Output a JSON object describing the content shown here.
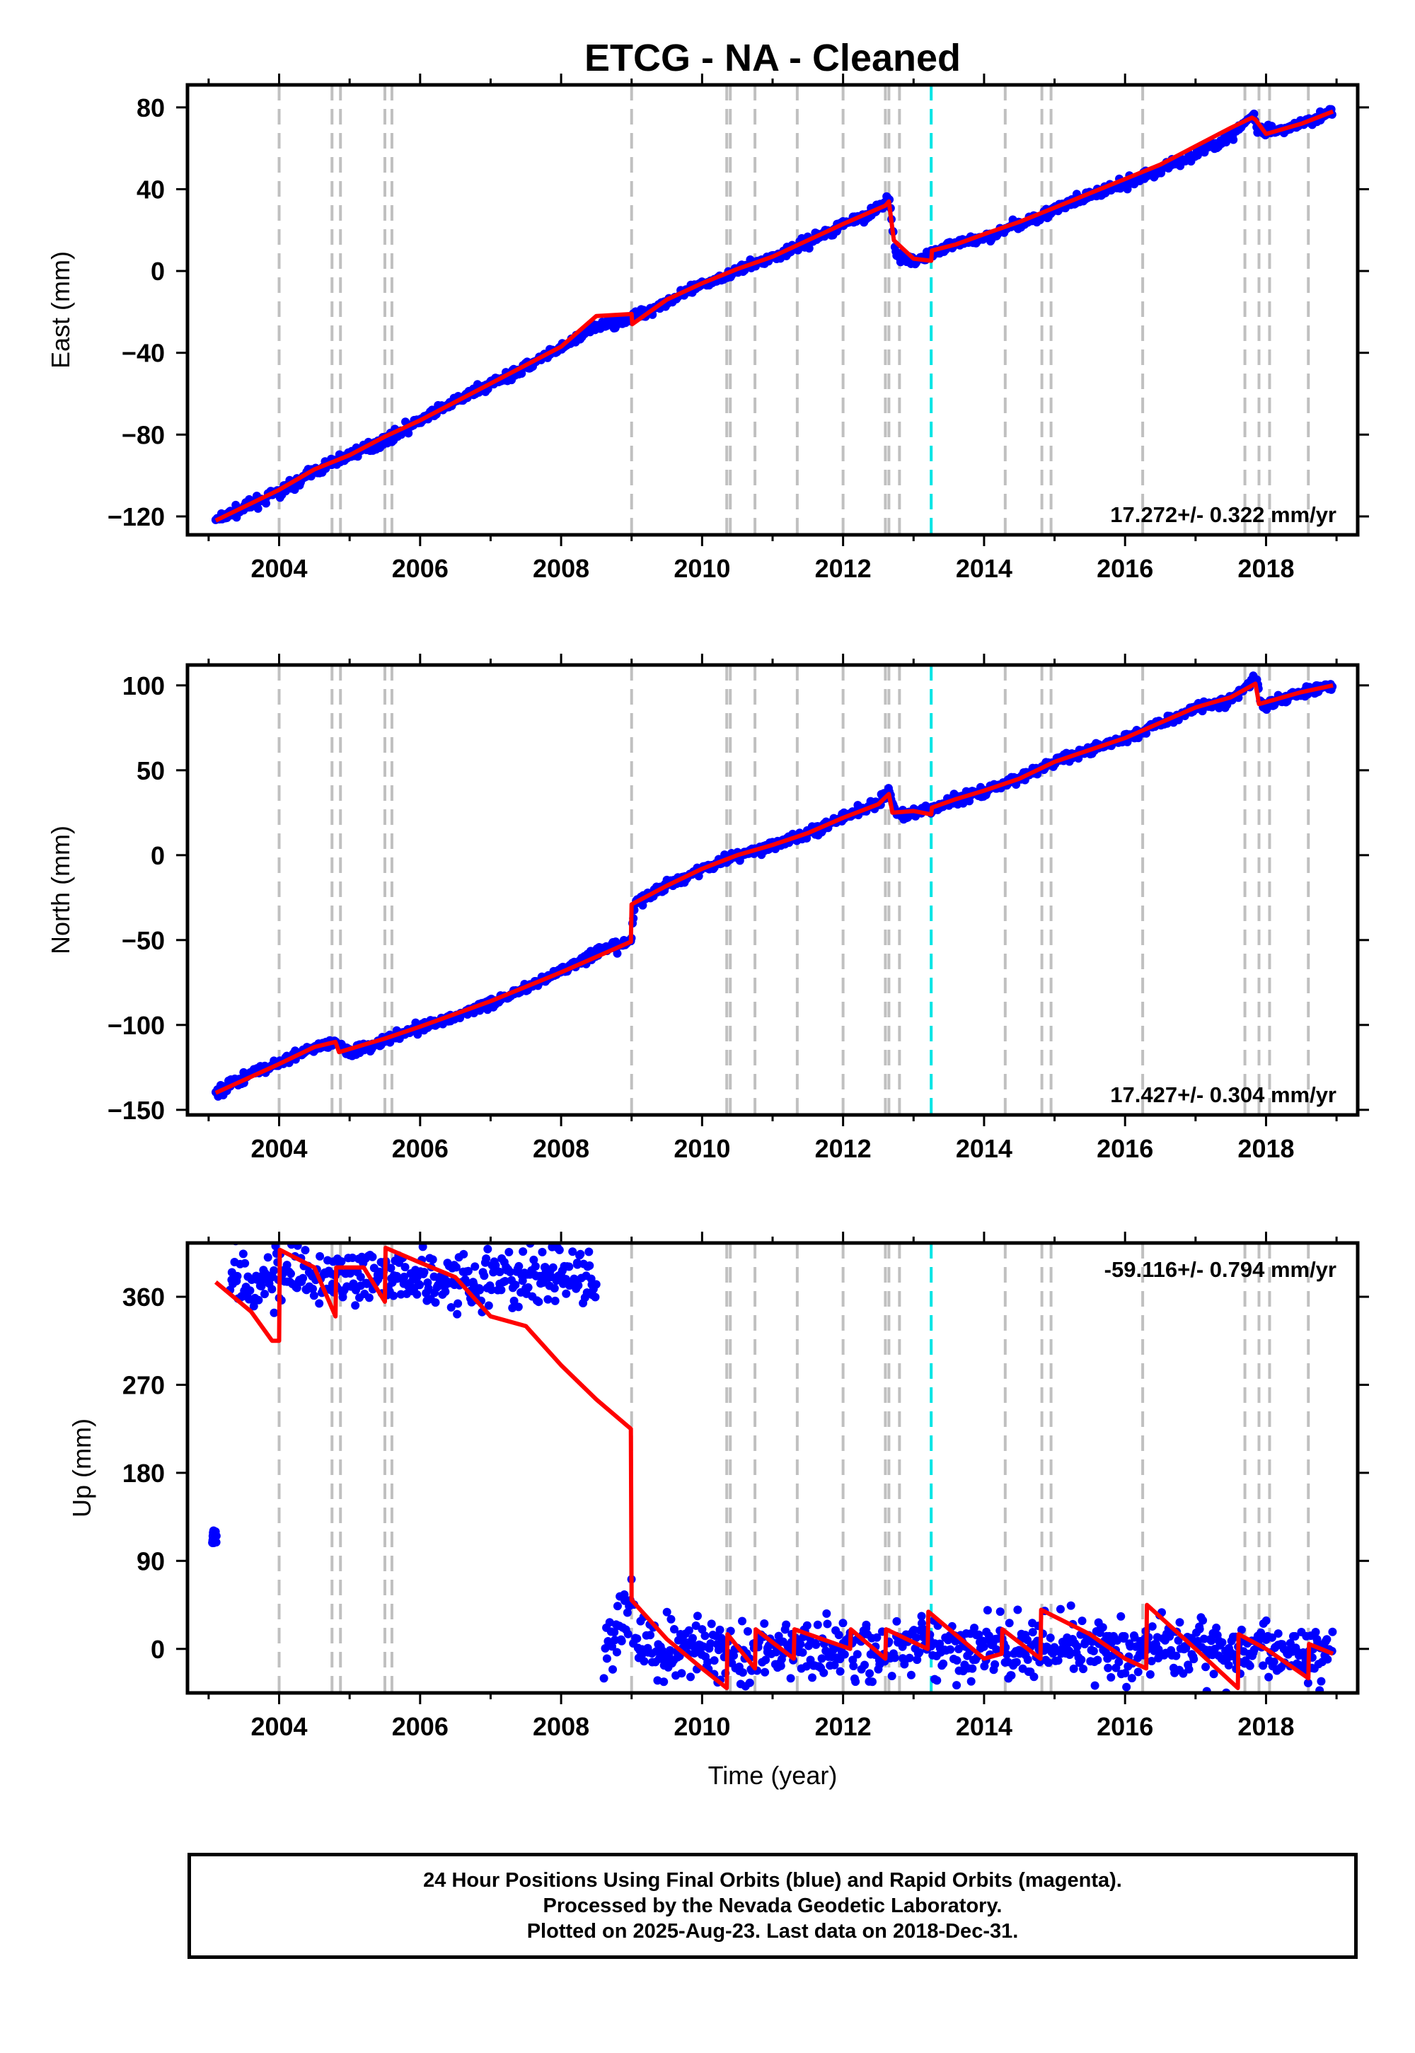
{
  "title": "ETCG  - NA - Cleaned",
  "footer": {
    "line1": "24 Hour Positions Using Final Orbits (blue) and Rapid Orbits (magenta).",
    "line2": "Processed by the Nevada Geodetic Laboratory.",
    "line3": "Plotted on 2025-Aug-23. Last data on 2018-Dec-31."
  },
  "colors": {
    "data": "#0000ff",
    "model": "#ff0000",
    "event_line": "#c0c0c0",
    "equipment_line": "#00e5e5"
  },
  "chart_data": [
    {
      "type": "scatter",
      "id": "east",
      "ylabel": "East (mm)",
      "xlabel": "",
      "xlim": [
        2002.7,
        2019.3
      ],
      "ylim": [
        -129,
        91
      ],
      "xticks": [
        2004,
        2006,
        2008,
        2010,
        2012,
        2014,
        2016,
        2018
      ],
      "yticks": [
        -120,
        -80,
        -40,
        0,
        40,
        80
      ],
      "rate_label": "17.272+/- 0.322 mm/yr",
      "rate_position": "bottom-right",
      "series": [
        {
          "kind": "points",
          "color": "#0000ff",
          "x": [
            2003.1,
            2003.5,
            2004.0,
            2004.5,
            2005.0,
            2005.5,
            2006.0,
            2006.5,
            2007.0,
            2007.5,
            2008.0,
            2008.5,
            2009.0,
            2009.5,
            2010.0,
            2010.5,
            2011.0,
            2011.5,
            2012.0,
            2012.5,
            2012.65,
            2012.75,
            2013.0,
            2013.6,
            2014.0,
            2014.5,
            2015.0,
            2015.5,
            2016.0,
            2016.5,
            2017.0,
            2017.5,
            2017.8,
            2017.9,
            2018.2,
            2018.6,
            2018.95
          ],
          "y": [
            -122,
            -116,
            -108,
            -98,
            -90,
            -83,
            -73,
            -64,
            -55,
            -47,
            -38,
            -27,
            -23,
            -15,
            -7,
            0,
            7,
            14,
            23,
            30,
            36,
            8,
            4,
            14,
            16,
            23,
            30,
            37,
            42,
            50,
            57,
            66,
            76,
            68,
            68,
            73,
            79
          ]
        },
        {
          "kind": "line",
          "color": "#ff0000",
          "x": [
            2003.1,
            2004.0,
            2004.5,
            2005.0,
            2005.5,
            2006.0,
            2007.0,
            2008.0,
            2008.5,
            2009.0,
            2009.01,
            2009.5,
            2010.0,
            2010.5,
            2011.0,
            2011.5,
            2012.0,
            2012.4,
            2012.6,
            2012.65,
            2012.72,
            2013.0,
            2013.25,
            2013.26,
            2013.6,
            2014.0,
            2014.5,
            2015.0,
            2015.5,
            2016.0,
            2016.5,
            2017.0,
            2017.5,
            2017.8,
            2017.85,
            2018.0,
            2018.5,
            2018.95
          ],
          "y": [
            -122,
            -107,
            -97,
            -90,
            -81,
            -73,
            -55,
            -37,
            -22,
            -21,
            -26,
            -14,
            -6,
            1,
            7,
            15,
            23,
            29,
            32,
            34,
            15,
            6,
            5,
            10,
            13,
            18,
            24,
            31,
            38,
            45,
            52,
            61,
            70,
            75,
            74,
            67,
            72,
            78
          ]
        }
      ]
    },
    {
      "type": "scatter",
      "id": "north",
      "ylabel": "North (mm)",
      "xlabel": "",
      "xlim": [
        2002.7,
        2019.3
      ],
      "ylim": [
        -153,
        112
      ],
      "xticks": [
        2004,
        2006,
        2008,
        2010,
        2012,
        2014,
        2016,
        2018
      ],
      "yticks": [
        -150,
        -100,
        -50,
        0,
        50,
        100
      ],
      "rate_label": "17.427+/- 0.304 mm/yr",
      "rate_position": "bottom-right",
      "series": [
        {
          "kind": "points",
          "color": "#0000ff",
          "x": [
            2003.1,
            2003.5,
            2004.0,
            2004.5,
            2004.8,
            2005.0,
            2005.5,
            2006.0,
            2006.5,
            2007.0,
            2007.5,
            2008.0,
            2008.5,
            2008.99,
            2009.05,
            2009.5,
            2010.0,
            2010.5,
            2011.0,
            2011.5,
            2012.0,
            2012.5,
            2012.65,
            2012.75,
            2013.0,
            2013.5,
            2014.0,
            2014.5,
            2015.0,
            2015.5,
            2016.0,
            2016.5,
            2017.0,
            2017.5,
            2017.85,
            2017.95,
            2018.5,
            2018.95
          ],
          "y": [
            -140,
            -131,
            -122,
            -113,
            -110,
            -116,
            -109,
            -101,
            -95,
            -87,
            -78,
            -68,
            -58,
            -51,
            -28,
            -18,
            -8,
            0,
            6,
            13,
            22,
            30,
            38,
            25,
            24,
            31,
            38,
            45,
            55,
            62,
            69,
            77,
            87,
            91,
            104,
            88,
            96,
            100
          ]
        },
        {
          "kind": "line",
          "color": "#ff0000",
          "x": [
            2003.1,
            2004.0,
            2004.5,
            2004.8,
            2004.85,
            2005.5,
            2006.0,
            2007.0,
            2008.0,
            2008.99,
            2009.0,
            2009.5,
            2010.0,
            2010.5,
            2011.0,
            2011.5,
            2012.0,
            2012.5,
            2012.65,
            2012.7,
            2013.0,
            2013.25,
            2013.26,
            2013.6,
            2014.0,
            2014.5,
            2015.0,
            2015.5,
            2016.0,
            2016.5,
            2017.0,
            2017.5,
            2017.85,
            2017.9,
            2018.5,
            2018.95
          ],
          "y": [
            -140,
            -123,
            -113,
            -110,
            -116,
            -108,
            -101,
            -86,
            -69,
            -51,
            -29,
            -18,
            -8,
            0,
            6,
            13,
            22,
            30,
            36,
            25,
            26,
            24,
            28,
            33,
            38,
            45,
            55,
            62,
            69,
            78,
            87,
            93,
            101,
            89,
            96,
            100
          ]
        }
      ]
    },
    {
      "type": "scatter",
      "id": "up",
      "ylabel": "Up (mm)",
      "xlabel": "Time (year)",
      "xlim": [
        2002.7,
        2019.3
      ],
      "ylim": [
        -45,
        415
      ],
      "xticks": [
        2004,
        2006,
        2008,
        2010,
        2012,
        2014,
        2016,
        2018
      ],
      "yticks": [
        0,
        90,
        180,
        270,
        360
      ],
      "rate_label": "-59.116+/- 0.794 mm/yr",
      "rate_position": "top-right",
      "series": [
        {
          "kind": "points",
          "color": "#0000ff",
          "x": [
            2003.05,
            2003.1,
            2003.3,
            2003.6,
            2004.0,
            2004.5,
            2005.0,
            2005.5,
            2006.0,
            2006.5,
            2007.0,
            2007.5,
            2008.0,
            2008.5,
            2008.6,
            2009.0,
            2009.05,
            2009.5,
            2010.0,
            2010.5,
            2011.0,
            2011.5,
            2012.0,
            2012.5,
            2013.0,
            2013.5,
            2014.0,
            2014.5,
            2015.0,
            2015.5,
            2016.0,
            2016.5,
            2017.0,
            2017.5,
            2018.0,
            2018.5,
            2018.95
          ],
          "y": [
            120,
            112,
            380,
            378,
            382,
            376,
            381,
            379,
            383,
            378,
            380,
            377,
            382,
            379,
            -5,
            45,
            5,
            -2,
            0,
            -5,
            2,
            -3,
            0,
            -6,
            5,
            0,
            2,
            -2,
            3,
            0,
            -2,
            0,
            3,
            -5,
            0,
            -3,
            5
          ]
        },
        {
          "kind": "line",
          "color": "#ff0000",
          "x": [
            2003.1,
            2003.6,
            2003.9,
            2004.0,
            2004.01,
            2004.5,
            2004.8,
            2004.81,
            2005.2,
            2005.5,
            2005.51,
            2006.0,
            2006.5,
            2007.0,
            2007.5,
            2008.0,
            2008.5,
            2008.99,
            2009.0,
            2009.5,
            2010.0,
            2010.35,
            2010.36,
            2010.75,
            2010.76,
            2011.3,
            2011.31,
            2012.1,
            2012.11,
            2012.6,
            2012.61,
            2013.2,
            2013.21,
            2014.0,
            2014.25,
            2014.26,
            2014.8,
            2014.81,
            2015.5,
            2016.0,
            2016.3,
            2016.31,
            2017.0,
            2017.6,
            2017.61,
            2018.0,
            2018.6,
            2018.61,
            2018.95
          ],
          "y": [
            375,
            345,
            315,
            315,
            408,
            390,
            340,
            390,
            390,
            355,
            410,
            395,
            380,
            340,
            330,
            290,
            255,
            225,
            50,
            10,
            -20,
            -40,
            15,
            -20,
            20,
            -10,
            20,
            0,
            20,
            -10,
            20,
            0,
            38,
            -10,
            -5,
            20,
            -10,
            40,
            15,
            -10,
            -20,
            45,
            0,
            -40,
            15,
            0,
            -30,
            5,
            -5
          ]
        }
      ]
    }
  ],
  "event_lines": {
    "gray": [
      2004.0,
      2004.75,
      2004.87,
      2005.5,
      2005.6,
      2009.0,
      2010.35,
      2010.4,
      2010.75,
      2011.35,
      2012.0,
      2012.6,
      2012.65,
      2012.8,
      2014.3,
      2014.82,
      2014.95,
      2016.25,
      2017.7,
      2017.9,
      2018.05,
      2018.6
    ],
    "cyan": [
      2013.25
    ]
  }
}
